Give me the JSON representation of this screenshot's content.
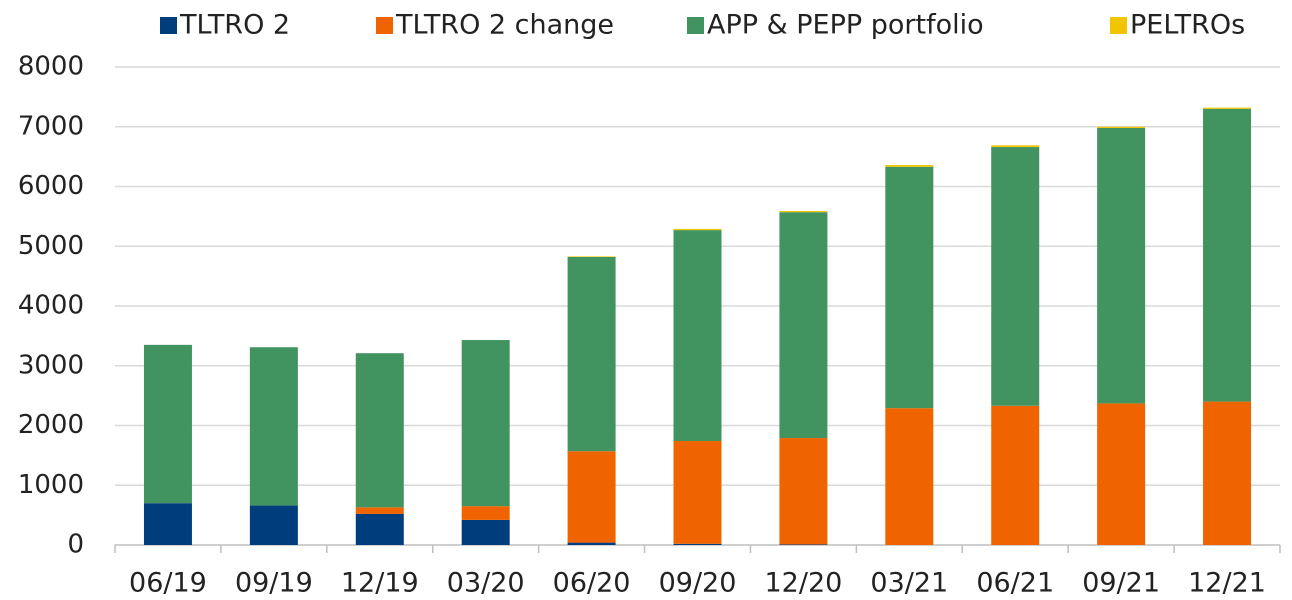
{
  "chart_data": {
    "type": "stacked_bar",
    "categories": [
      "06/19",
      "09/19",
      "12/19",
      "03/20",
      "06/20",
      "09/20",
      "12/20",
      "03/21",
      "06/21",
      "09/21",
      "12/21"
    ],
    "series": [
      {
        "name": "TLTRO 2",
        "color": "#003d7d",
        "values": [
          700,
          660,
          520,
          420,
          40,
          20,
          10,
          0,
          0,
          0,
          0
        ]
      },
      {
        "name": "TLTRO 2 change",
        "color": "#f06400",
        "values": [
          0,
          0,
          110,
          230,
          1530,
          1720,
          1780,
          2290,
          2330,
          2370,
          2400
        ]
      },
      {
        "name": "APP & PEPP portfolio",
        "color": "#419360",
        "values": [
          2650,
          2650,
          2580,
          2780,
          3250,
          3530,
          3780,
          4040,
          4330,
          4610,
          4900
        ]
      },
      {
        "name": "PELTROs",
        "color": "#f2c500",
        "values": [
          0,
          0,
          0,
          0,
          10,
          20,
          20,
          30,
          30,
          20,
          20
        ]
      }
    ],
    "ylim": [
      0,
      8000
    ],
    "yticks": [
      0,
      1000,
      2000,
      3000,
      4000,
      5000,
      6000,
      7000,
      8000
    ],
    "grid": true,
    "legend": "top"
  }
}
